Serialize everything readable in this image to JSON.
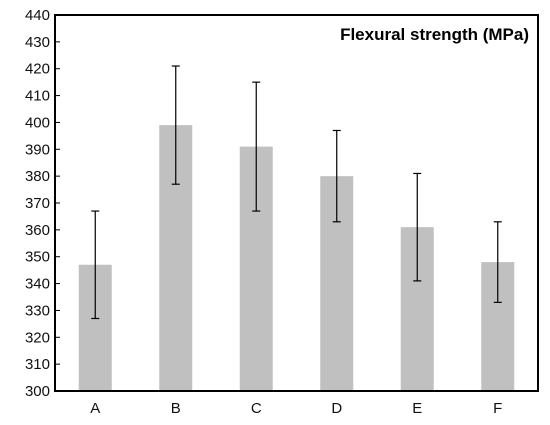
{
  "chart_data": {
    "type": "bar",
    "title": "Flexural strength (MPa)",
    "xlabel": "",
    "ylabel": "",
    "categories": [
      "A",
      "B",
      "C",
      "D",
      "E",
      "F"
    ],
    "values": [
      347,
      399,
      391,
      380,
      361,
      348
    ],
    "error_low": [
      327,
      377,
      367,
      363,
      341,
      333
    ],
    "error_high": [
      367,
      421,
      415,
      397,
      381,
      363
    ],
    "ylim": [
      300,
      440
    ],
    "yticks": [
      300,
      310,
      320,
      330,
      340,
      350,
      360,
      370,
      380,
      390,
      400,
      410,
      420,
      430,
      440
    ],
    "grid": false,
    "title_position": "top-right",
    "colors": {
      "bar": "#c0c0c0",
      "error_bar": "#000000",
      "frame": "#000000"
    }
  }
}
